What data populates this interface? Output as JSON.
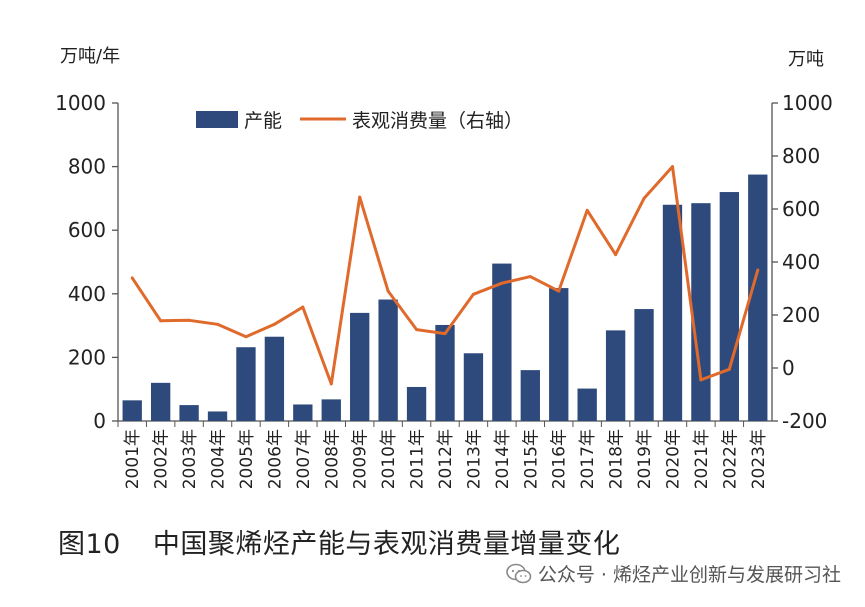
{
  "chart_data": {
    "type": "bar+line",
    "categories": [
      "2001年",
      "2002年",
      "2003年",
      "2004年",
      "2005年",
      "2006年",
      "2007年",
      "2008年",
      "2009年",
      "2010年",
      "2011年",
      "2012年",
      "2013年",
      "2014年",
      "2015年",
      "2016年",
      "2017年",
      "2018年",
      "2019年",
      "2020年",
      "2021年",
      "2022年",
      "2023年"
    ],
    "series": [
      {
        "name": "产能",
        "type": "bar",
        "axis": "left",
        "color": "#2e4a7d",
        "values": [
          65,
          120,
          50,
          30,
          232,
          265,
          52,
          68,
          340,
          382,
          107,
          302,
          213,
          495,
          160,
          418,
          102,
          285,
          352,
          680,
          685,
          720,
          775
        ]
      },
      {
        "name": "表观消费量（右轴）",
        "type": "line",
        "axis": "right",
        "color": "#e06a2c",
        "values": [
          340,
          178,
          180,
          165,
          118,
          165,
          230,
          -60,
          645,
          290,
          145,
          130,
          278,
          320,
          345,
          290,
          595,
          428,
          640,
          760,
          -45,
          -5,
          370
        ]
      }
    ],
    "left_axis": {
      "unit": "万吨/年",
      "ylim": [
        0,
        1000
      ],
      "ticks": [
        0,
        200,
        400,
        600,
        800,
        1000
      ]
    },
    "right_axis": {
      "unit": "万吨",
      "ylim": [
        -200,
        1000
      ],
      "ticks": [
        -200,
        0,
        200,
        400,
        600,
        800,
        1000
      ]
    },
    "legend": {
      "position": "top"
    }
  },
  "caption": {
    "number": "图10",
    "title": "中国聚烯烃产能与表观消费量增量变化"
  },
  "watermark": {
    "text": "公众号 · 烯烃产业创新与发展研习社",
    "icon": "wechat-icon"
  }
}
